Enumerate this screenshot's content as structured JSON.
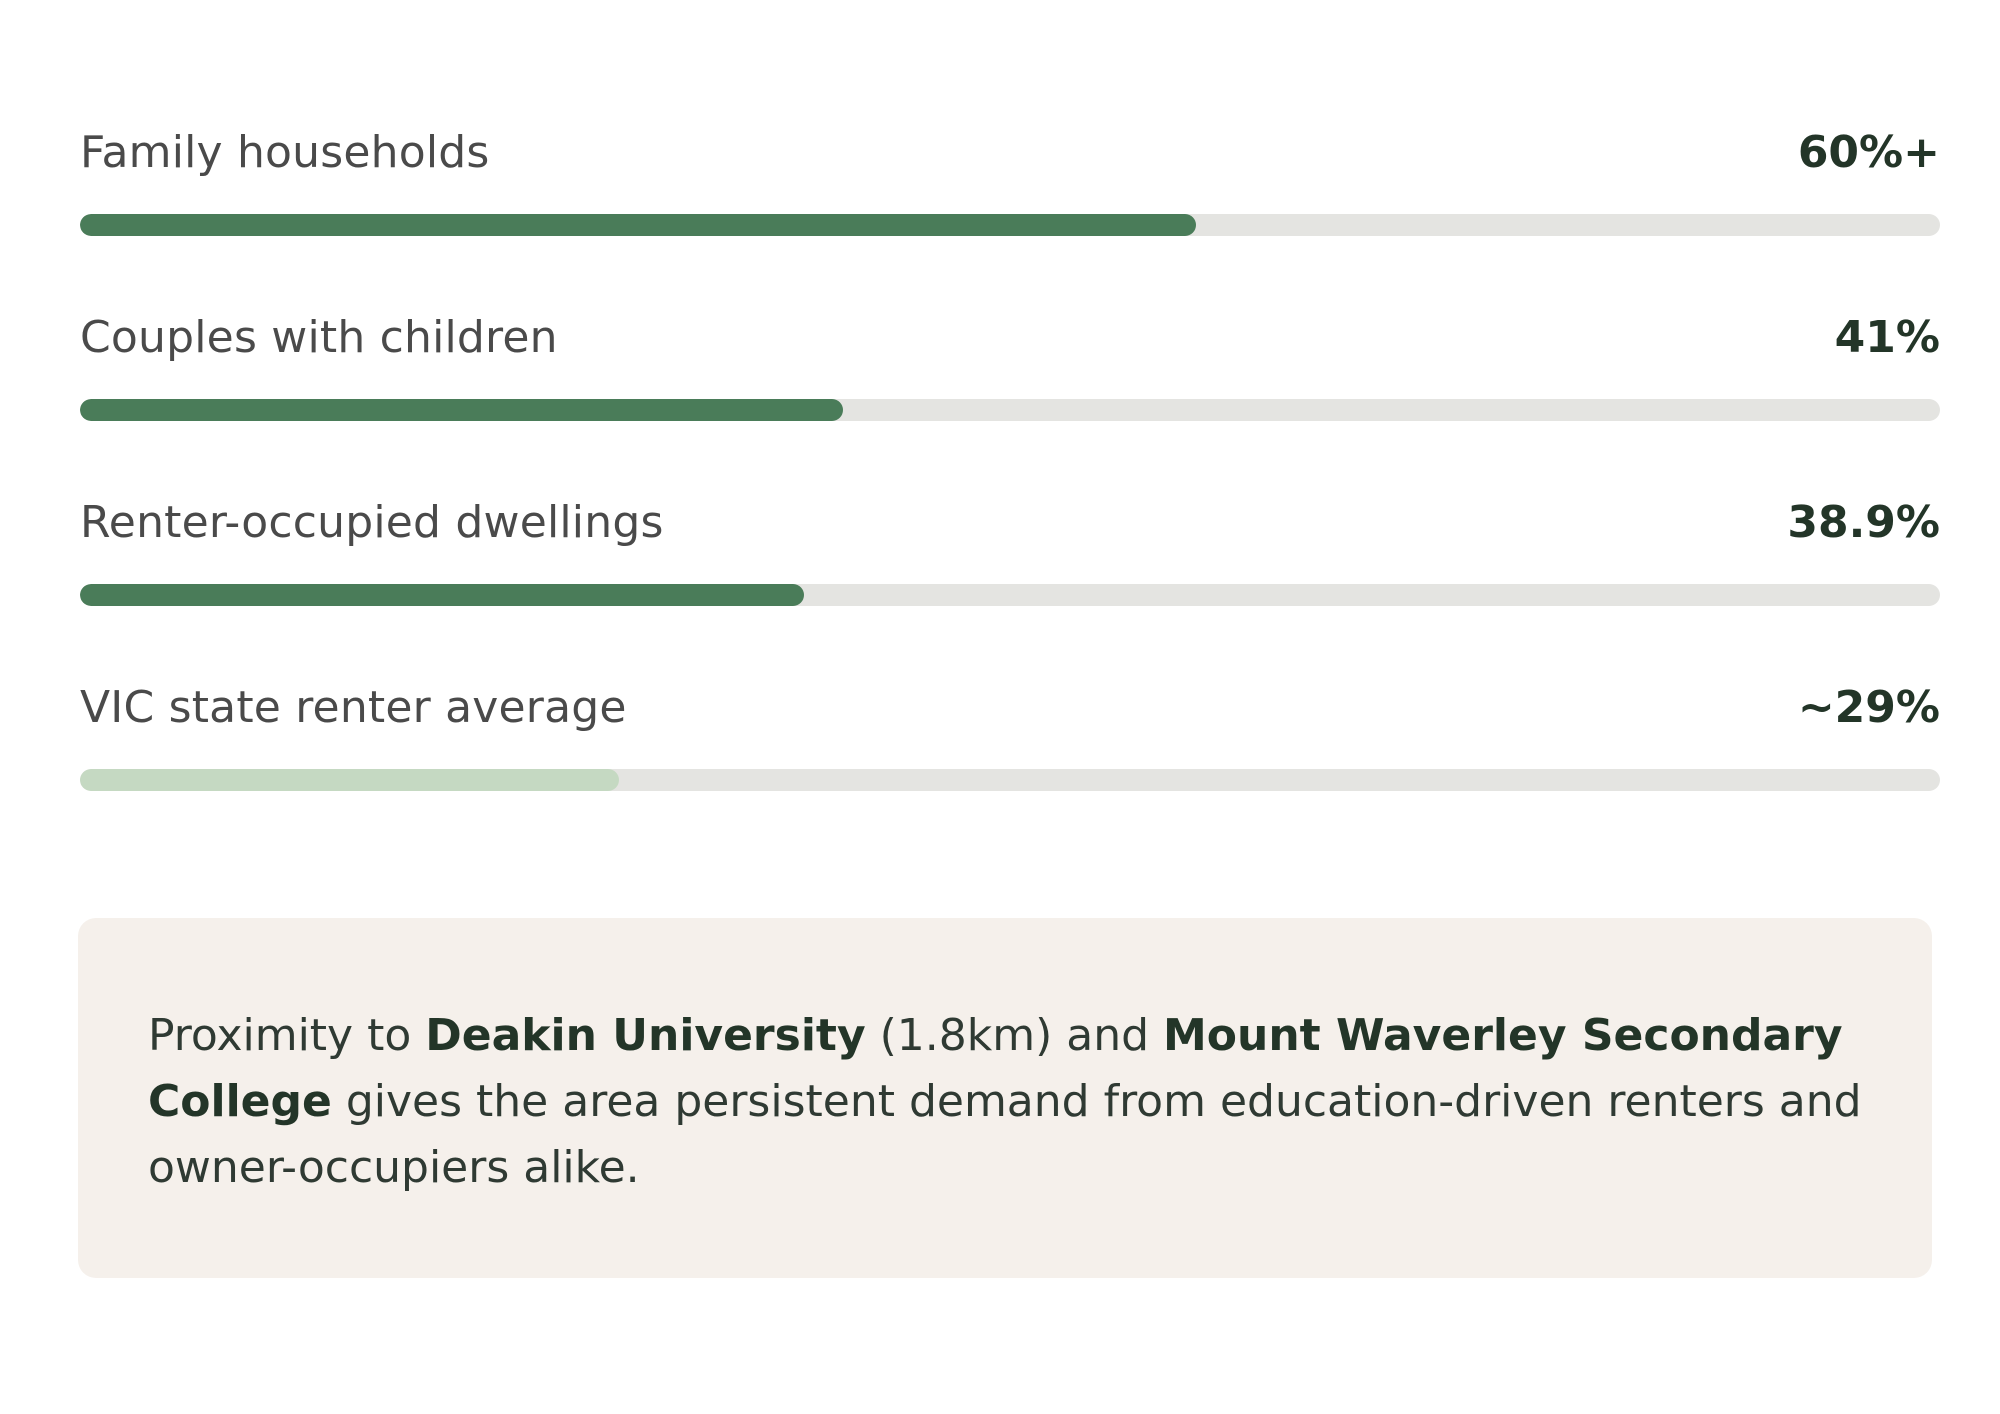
{
  "stats": [
    {
      "label": "Family households",
      "value": "60%+",
      "fill_fraction": 0.6,
      "color": "#4a7c59"
    },
    {
      "label": "Couples with children",
      "value": "41%",
      "fill_fraction": 0.41,
      "color": "#4a7c59"
    },
    {
      "label": "Renter-occupied dwellings",
      "value": "38.9%",
      "fill_fraction": 0.389,
      "color": "#4a7c59"
    },
    {
      "label": "VIC state renter average",
      "value": "~29%",
      "fill_fraction": 0.29,
      "color": "#c5d9c2"
    }
  ],
  "colors": {
    "track": "#e4e4e1",
    "callout_background": "#f5f0eb",
    "accent": "#4a7c59"
  },
  "callout": {
    "part1": "Proximity to ",
    "bold1": "Deakin University",
    "part2": " (1.8km) and ",
    "bold2": "Mount Waverley Secondary College",
    "part3": " gives the area persistent demand from education-driven renters and owner-occupiers alike."
  }
}
